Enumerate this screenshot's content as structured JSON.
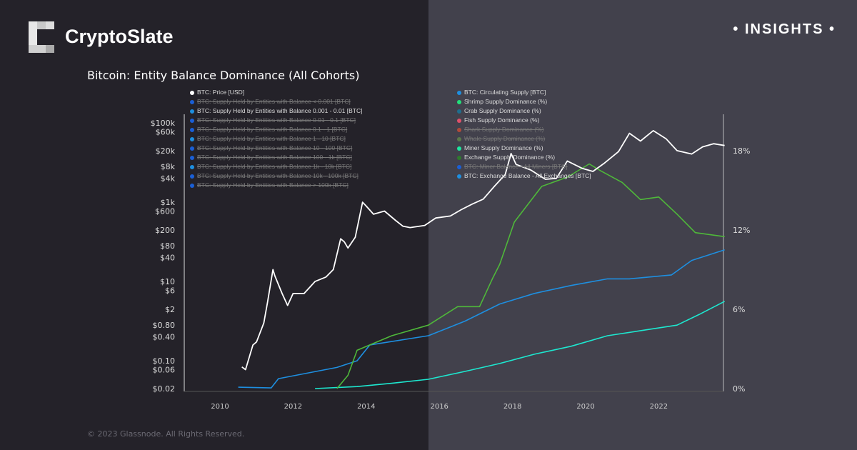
{
  "brand": {
    "name": "CryptoSlate",
    "tag": "• INSIGHTS •"
  },
  "copyright": "© 2023 Glassnode. All Rights Reserved.",
  "colors": {
    "price": "#ffffff",
    "exchange": "#4fb83a",
    "crab": "#1e8fe0",
    "shrimp": "#1de8d0",
    "bg_left": "#242229",
    "bg_right": "#42414c"
  },
  "legend": [
    {
      "label": "BTC: Price [USD]",
      "color": "#ffffff",
      "active": true
    },
    {
      "label": "BTC: Supply Held by Entities with Balance < 0.001 [BTC]",
      "color": "#1a5fd6",
      "active": false
    },
    {
      "label": "BTC: Supply Held by Entities with Balance 0.001 - 0.01 [BTC]",
      "color": "#1e8fe0",
      "active": true
    },
    {
      "label": "BTC: Supply Held by Entities with Balance 0.01 - 0.1 [BTC]",
      "color": "#1a5fd6",
      "active": false
    },
    {
      "label": "BTC: Supply Held by Entities with Balance 0.1 - 1 [BTC]",
      "color": "#1a5fd6",
      "active": false
    },
    {
      "label": "BTC: Supply Held by Entities with Balance 1 - 10 [BTC]",
      "color": "#1e8fe0",
      "active": false
    },
    {
      "label": "BTC: Supply Held by Entities with Balance 10 - 100 [BTC]",
      "color": "#1a5fd6",
      "active": false
    },
    {
      "label": "BTC: Supply Held by Entities with Balance 100 - 1k [BTC]",
      "color": "#1a5fd6",
      "active": false
    },
    {
      "label": "BTC: Supply Held by Entities with Balance 1k - 10k [BTC]",
      "color": "#1e8fe0",
      "active": false
    },
    {
      "label": "BTC: Supply Held by Entities with Balance 10k - 100k [BTC]",
      "color": "#1a5fd6",
      "active": false
    },
    {
      "label": "BTC: Supply Held by Entities with Balance > 100k [BTC]",
      "color": "#1a5fd6",
      "active": false
    },
    {
      "label": "BTC: Circulating Supply [BTC]",
      "color": "#1e8fe0",
      "active": true
    },
    {
      "label": "Shrimp Supply Dominance (%)",
      "color": "#22e07a",
      "active": true
    },
    {
      "label": "Crab Supply Dominance (%)",
      "color": "#1e6f8f",
      "active": true
    },
    {
      "label": "Fish Supply Dominance (%)",
      "color": "#e0506a",
      "active": true
    },
    {
      "label": "Shark Supply Dominance (%)",
      "color": "#b04a3a",
      "active": false
    },
    {
      "label": "Whale Supply Dominance (%)",
      "color": "#5a7a4a",
      "active": false
    },
    {
      "label": "Miner Supply Dominance (%)",
      "color": "#1de8a0",
      "active": true
    },
    {
      "label": "Exchange Supply Dominance (%)",
      "color": "#2e7a2e",
      "active": true
    },
    {
      "label": "BTC: Miner Balance - All Miners [BTC]",
      "color": "#1a5fd6",
      "active": false
    },
    {
      "label": "BTC: Exchange Balance - All Exchanges [BTC]",
      "color": "#1e8fe0",
      "active": true
    }
  ],
  "chart_data": {
    "type": "line",
    "title": "Bitcoin: Entity Balance Dominance (All Cohorts)",
    "x_ticks": [
      "2010",
      "2012",
      "2014",
      "2016",
      "2018",
      "2020",
      "2022"
    ],
    "xlim": [
      2009,
      2023.8
    ],
    "y_left": {
      "scale": "log",
      "ticks": [
        "$0.02",
        "$0.06",
        "$0.10",
        "$0.40",
        "$0.80",
        "$2",
        "$6",
        "$10",
        "$40",
        "$80",
        "$200",
        "$600",
        "$1k",
        "$4k",
        "$8k",
        "$20k",
        "$60k",
        "$100k"
      ],
      "tick_values": [
        0.02,
        0.06,
        0.1,
        0.4,
        0.8,
        2,
        6,
        10,
        40,
        80,
        200,
        600,
        1000,
        4000,
        8000,
        20000,
        60000,
        100000
      ],
      "ylim": [
        0.02,
        100000
      ]
    },
    "y_right": {
      "ticks": [
        "0%",
        "6%",
        "12%",
        "18%"
      ],
      "tick_values": [
        0,
        6,
        12,
        18
      ],
      "ylim": [
        0,
        18
      ]
    },
    "grid": false,
    "series": [
      {
        "name": "BTC: Price [USD]",
        "axis": "left",
        "color": "#ffffff",
        "points": [
          [
            2010.6,
            0.07
          ],
          [
            2010.7,
            0.06
          ],
          [
            2010.9,
            0.25
          ],
          [
            2011.0,
            0.3
          ],
          [
            2011.2,
            0.9
          ],
          [
            2011.3,
            3
          ],
          [
            2011.45,
            20
          ],
          [
            2011.5,
            14
          ],
          [
            2011.7,
            5
          ],
          [
            2011.85,
            2.5
          ],
          [
            2012.0,
            5
          ],
          [
            2012.3,
            5
          ],
          [
            2012.6,
            10
          ],
          [
            2012.9,
            13
          ],
          [
            2013.1,
            20
          ],
          [
            2013.3,
            120
          ],
          [
            2013.4,
            100
          ],
          [
            2013.5,
            70
          ],
          [
            2013.7,
            130
          ],
          [
            2013.9,
            1000
          ],
          [
            2014.0,
            800
          ],
          [
            2014.2,
            500
          ],
          [
            2014.5,
            600
          ],
          [
            2014.8,
            350
          ],
          [
            2015.0,
            250
          ],
          [
            2015.2,
            230
          ],
          [
            2015.6,
            260
          ],
          [
            2015.9,
            400
          ],
          [
            2016.3,
            450
          ],
          [
            2016.6,
            650
          ],
          [
            2016.9,
            900
          ],
          [
            2017.2,
            1200
          ],
          [
            2017.5,
            2500
          ],
          [
            2017.8,
            5000
          ],
          [
            2017.96,
            17000
          ],
          [
            2018.1,
            9000
          ],
          [
            2018.5,
            6500
          ],
          [
            2018.9,
            3800
          ],
          [
            2019.2,
            4000
          ],
          [
            2019.5,
            11000
          ],
          [
            2019.9,
            7200
          ],
          [
            2020.2,
            6000
          ],
          [
            2020.5,
            9500
          ],
          [
            2020.9,
            19000
          ],
          [
            2021.2,
            55000
          ],
          [
            2021.5,
            35000
          ],
          [
            2021.85,
            64000
          ],
          [
            2022.2,
            40000
          ],
          [
            2022.5,
            20000
          ],
          [
            2022.9,
            16500
          ],
          [
            2023.2,
            25000
          ],
          [
            2023.5,
            30000
          ],
          [
            2023.8,
            27000
          ]
        ]
      },
      {
        "name": "Exchange Supply Dominance (%)",
        "axis": "right",
        "color": "#4fb83a",
        "points": [
          [
            2013.2,
            0
          ],
          [
            2013.5,
            1
          ],
          [
            2013.75,
            2.9
          ],
          [
            2014.7,
            4
          ],
          [
            2015.7,
            4.8
          ],
          [
            2016.5,
            6.2
          ],
          [
            2017.1,
            6.2
          ],
          [
            2017.45,
            8.3
          ],
          [
            2017.65,
            9.4
          ],
          [
            2018.05,
            12.6
          ],
          [
            2018.8,
            15.3
          ],
          [
            2019.5,
            16
          ],
          [
            2020.1,
            17
          ],
          [
            2020.4,
            16.5
          ],
          [
            2021.0,
            15.6
          ],
          [
            2021.5,
            14.3
          ],
          [
            2022.0,
            14.5
          ],
          [
            2022.5,
            13.2
          ],
          [
            2023.0,
            11.8
          ],
          [
            2023.8,
            11.5
          ]
        ]
      },
      {
        "name": "Crab Supply Dominance (%)",
        "axis": "right",
        "color": "#1e8fe0",
        "points": [
          [
            2010.5,
            0.1
          ],
          [
            2011.4,
            0.05
          ],
          [
            2011.6,
            0.75
          ],
          [
            2013.2,
            1.6
          ],
          [
            2013.75,
            2.1
          ],
          [
            2014.1,
            3.3
          ],
          [
            2015.7,
            4
          ],
          [
            2016.7,
            5.1
          ],
          [
            2017.65,
            6.4
          ],
          [
            2018.6,
            7.2
          ],
          [
            2019.6,
            7.8
          ],
          [
            2020.6,
            8.3
          ],
          [
            2021.2,
            8.3
          ],
          [
            2022.35,
            8.6
          ],
          [
            2022.9,
            9.7
          ],
          [
            2023.8,
            10.5
          ]
        ]
      },
      {
        "name": "Shrimp Supply Dominance (%)",
        "axis": "right",
        "color": "#1de8d0",
        "points": [
          [
            2012.6,
            0
          ],
          [
            2013.75,
            0.15
          ],
          [
            2014.7,
            0.4
          ],
          [
            2015.7,
            0.7
          ],
          [
            2016.7,
            1.3
          ],
          [
            2017.65,
            1.9
          ],
          [
            2018.6,
            2.6
          ],
          [
            2019.6,
            3.2
          ],
          [
            2020.6,
            4
          ],
          [
            2021.55,
            4.4
          ],
          [
            2022.5,
            4.8
          ],
          [
            2023.1,
            5.6
          ],
          [
            2023.8,
            6.6
          ]
        ]
      }
    ]
  }
}
